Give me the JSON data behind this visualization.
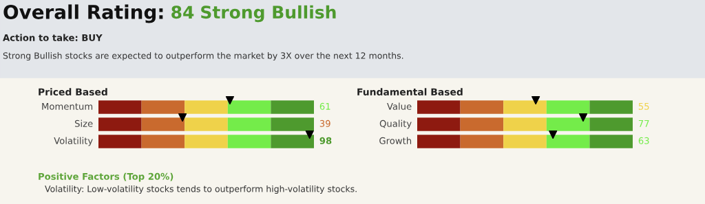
{
  "chart_data": [
    {
      "type": "other",
      "title": "Overall Rating:",
      "subtitle": "Strong Bullish",
      "values": [
        84
      ],
      "data_labels": true,
      "annotations": [
        "Action to take: BUY",
        "Strong Bullish stocks are expected to outperform the market by 3X over the next 12 months."
      ]
    },
    {
      "type": "other",
      "title": "Priced Based",
      "categories": [
        "Momentum",
        "Size",
        "Volatility"
      ],
      "values": [
        61,
        39,
        98
      ],
      "data_labels": true,
      "annotations": [
        "Positive Factors (Top 20%)",
        "Volatility: Low-volatility stocks tends to outperform high-volatility stocks."
      ]
    },
    {
      "type": "other",
      "title": "Fundamental Based",
      "categories": [
        "Value",
        "Quality",
        "Growth"
      ],
      "values": [
        55,
        77,
        63
      ],
      "data_labels": true
    }
  ]
}
